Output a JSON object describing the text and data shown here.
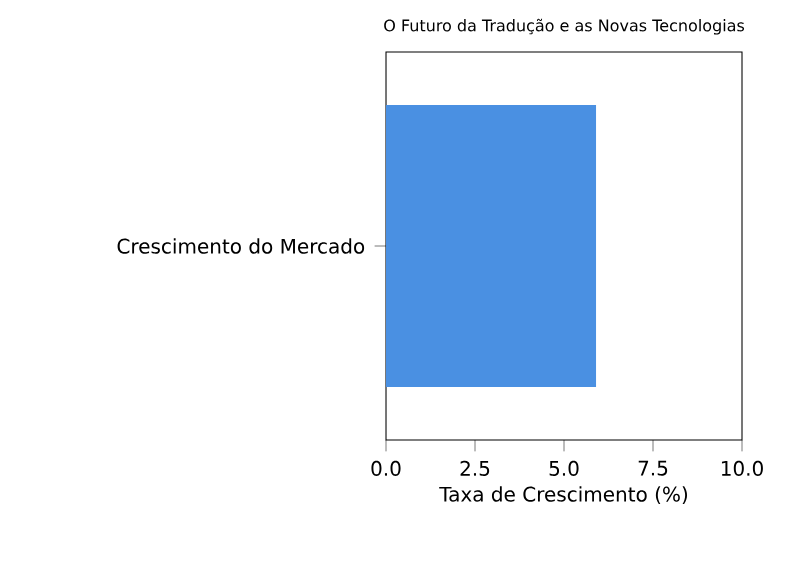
{
  "chart_data": {
    "type": "bar",
    "orientation": "horizontal",
    "title": "O Futuro da Tradução e as Novas Tecnologias",
    "xlabel": "Taxa de Crescimento (%)",
    "categories": [
      "Crescimento do Mercado"
    ],
    "values": [
      5.9
    ],
    "color": "#4a90e2",
    "xlim": [
      0,
      10
    ],
    "xticks": [
      {
        "value": 0,
        "label": "0.0"
      },
      2.5,
      {
        "value": 5,
        "label": "5.0"
      },
      7.5,
      {
        "value": 10,
        "label": "10.0"
      }
    ]
  }
}
